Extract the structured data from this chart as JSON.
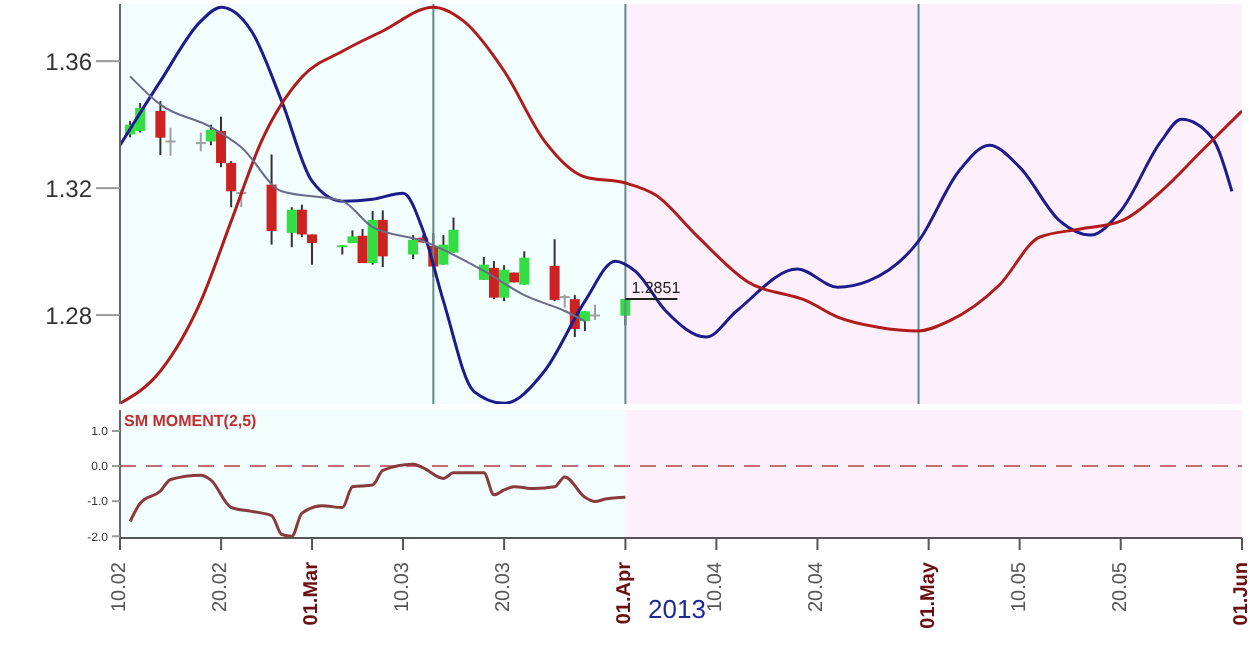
{
  "chart_data": [
    {
      "type": "candlestick",
      "xlim": [
        "2013-02-10",
        "2013-06-01"
      ],
      "tick_labels": "y",
      "ylim": [
        1.252,
        1.378
      ],
      "yticks": [
        1.28,
        1.32,
        1.36
      ],
      "x": [
        "2013-02-11",
        "2013-02-12",
        "2013-02-14",
        "2013-02-15",
        "2013-02-18",
        "2013-02-19",
        "2013-02-20",
        "2013-02-21",
        "2013-02-22",
        "2013-02-25",
        "2013-02-27",
        "2013-02-28",
        "2013-03-01",
        "2013-03-04",
        "2013-03-05",
        "2013-03-06",
        "2013-03-07",
        "2013-03-08",
        "2013-03-11",
        "2013-03-12",
        "2013-03-13",
        "2013-03-14",
        "2013-03-15",
        "2013-03-18",
        "2013-03-19",
        "2013-03-20",
        "2013-03-21",
        "2013-03-22",
        "2013-03-25",
        "2013-03-26",
        "2013-03-27",
        "2013-03-28",
        "2013-03-29",
        "2013-04-01"
      ],
      "ohlc": [
        [
          1.3369,
          1.3411,
          1.336,
          1.34
        ],
        [
          1.338,
          1.3468,
          1.3375,
          1.3453
        ],
        [
          1.3443,
          1.3474,
          1.3304,
          1.3359
        ],
        [
          1.335,
          1.339,
          1.3302,
          1.3345
        ],
        [
          1.3345,
          1.3375,
          1.3316,
          1.3342
        ],
        [
          1.3347,
          1.34,
          1.3335,
          1.3384
        ],
        [
          1.338,
          1.3425,
          1.3266,
          1.3279
        ],
        [
          1.3279,
          1.3285,
          1.314,
          1.319
        ],
        [
          1.3188,
          1.3195,
          1.314,
          1.3185
        ],
        [
          1.3211,
          1.3306,
          1.3022,
          1.3065
        ],
        [
          1.3059,
          1.314,
          1.3014,
          1.3132
        ],
        [
          1.3132,
          1.3148,
          1.3046,
          1.3054
        ],
        [
          1.3054,
          1.3054,
          1.2959,
          1.3027
        ],
        [
          1.3017,
          1.302,
          1.2991,
          1.302
        ],
        [
          1.3027,
          1.3067,
          1.3027,
          1.3048
        ],
        [
          1.305,
          1.3071,
          1.2964,
          1.2964
        ],
        [
          1.2964,
          1.3128,
          1.2959,
          1.31
        ],
        [
          1.31,
          1.313,
          1.2951,
          1.2985
        ],
        [
          1.2991,
          1.3052,
          1.2977,
          1.3037
        ],
        [
          1.3044,
          1.3054,
          1.3029,
          1.3029
        ],
        [
          1.3018,
          1.3058,
          1.292,
          1.2953
        ],
        [
          1.2959,
          1.3052,
          1.2959,
          1.3022
        ],
        [
          1.2997,
          1.3107,
          1.2997,
          1.3069
        ],
        [
          1.2911,
          1.2983,
          1.2911,
          1.2959
        ],
        [
          1.2949,
          1.297,
          1.285,
          1.2855
        ],
        [
          1.2855,
          1.2957,
          1.2844,
          1.2943
        ],
        [
          1.2934,
          1.2934,
          1.2903,
          1.2903
        ],
        [
          1.2896,
          1.3001,
          1.2896,
          1.2981
        ],
        [
          1.2955,
          1.3039,
          1.2844,
          1.2848
        ],
        [
          1.286,
          1.2865,
          1.2823,
          1.2858
        ],
        [
          1.285,
          1.2863,
          1.2731,
          1.2756
        ],
        [
          1.2781,
          1.2812,
          1.275,
          1.2812
        ],
        [
          1.28,
          1.2833,
          1.2785,
          1.2802
        ],
        [
          1.2798,
          1.2851,
          1.2768,
          1.2851
        ]
      ],
      "colors": [
        "#33dd44",
        "#33dd44",
        "#cc2222",
        "#a0a0a0",
        "#a0a0a0",
        "#33dd44",
        "#cc2222",
        "#cc2222",
        "#a0a0a0",
        "#cc2222",
        "#33dd44",
        "#cc2222",
        "#cc2222",
        "#33dd44",
        "#33dd44",
        "#cc2222",
        "#33dd44",
        "#cc2222",
        "#33dd44",
        "#cc2222",
        "#cc2222",
        "#33dd44",
        "#33dd44",
        "#33dd44",
        "#cc2222",
        "#33dd44",
        "#cc2222",
        "#33dd44",
        "#cc2222",
        "#a0a0a0",
        "#cc2222",
        "#33dd44",
        "#a0a0a0",
        "#33dd44"
      ],
      "series": [
        {
          "type": "line",
          "color": "#1c1c8c",
          "x": [
            "2013-02-10",
            "2013-02-14",
            "2013-02-18",
            "2013-02-20",
            "2013-02-23",
            "2013-02-26",
            "2013-03-01",
            "2013-03-04",
            "2013-03-07",
            "2013-03-10",
            "2013-03-12",
            "2013-03-14",
            "2013-03-17",
            "2013-03-20",
            "2013-03-24",
            "2013-03-28",
            "2013-03-31",
            "2013-04-02",
            "2013-04-05",
            "2013-04-09",
            "2013-04-12",
            "2013-04-18",
            "2013-04-22",
            "2013-04-25",
            "2013-04-30",
            "2013-05-04",
            "2013-05-07",
            "2013-05-10",
            "2013-05-14",
            "2013-05-17",
            "2013-05-20",
            "2013-05-24",
            "2013-05-26",
            "2013-05-29",
            "2013-05-31"
          ],
          "values": [
            1.3335,
            1.3537,
            1.3726,
            1.377,
            1.3695,
            1.3474,
            1.3222,
            1.3159,
            1.3165,
            1.3184,
            1.3065,
            1.2844,
            1.256,
            1.2522,
            1.2624,
            1.2844,
            1.297,
            1.2938,
            1.2813,
            1.2731,
            1.2813,
            1.2945,
            1.2888,
            1.2907,
            1.3033,
            1.3254,
            1.3335,
            1.3266,
            1.3096,
            1.3052,
            1.3128,
            1.3348,
            1.3417,
            1.336,
            1.319
          ]
        },
        {
          "type": "line",
          "color": "#b01c1c",
          "x": [
            "2013-02-10",
            "2013-02-14",
            "2013-02-18",
            "2013-02-21",
            "2013-02-24",
            "2013-02-28",
            "2013-03-04",
            "2013-03-08",
            "2013-03-13",
            "2013-03-16",
            "2013-03-20",
            "2013-03-24",
            "2013-03-28",
            "2013-04-01",
            "2013-04-04",
            "2013-04-08",
            "2013-04-13",
            "2013-04-19",
            "2013-04-22",
            "2013-04-26",
            "2013-04-30",
            "2013-05-03",
            "2013-05-08",
            "2013-05-12",
            "2013-05-16",
            "2013-05-20",
            "2013-05-24",
            "2013-05-28",
            "2013-06-01"
          ],
          "values": [
            1.2522,
            1.2624,
            1.2844,
            1.3096,
            1.3348,
            1.355,
            1.3631,
            1.3695,
            1.377,
            1.3726,
            1.3569,
            1.3348,
            1.3235,
            1.3216,
            1.3178,
            1.3052,
            1.2907,
            1.2844,
            1.2794,
            1.2762,
            1.275,
            1.2781,
            1.2895,
            1.3046,
            1.3071,
            1.3096,
            1.319,
            1.3317,
            1.3443
          ]
        },
        {
          "type": "line",
          "color": "#6a6a8a",
          "x": [
            "2013-02-11",
            "2013-02-14",
            "2013-02-19",
            "2013-02-22",
            "2013-02-26",
            "2013-03-04",
            "2013-03-07",
            "2013-03-12",
            "2013-03-18",
            "2013-03-22",
            "2013-03-26",
            "2013-03-28"
          ],
          "values": [
            1.3552,
            1.3463,
            1.3392,
            1.3329,
            1.319,
            1.3159,
            1.3077,
            1.3033,
            1.2939,
            1.2863,
            1.2813,
            1.2781
          ]
        }
      ],
      "annotations": [
        {
          "text": "1.2851",
          "x": "2013-04-01",
          "y": 1.2851
        }
      ],
      "bands": [
        {
          "axis": "x",
          "from": "2013-02-10",
          "to": "2013-04-01",
          "color": "#f2fdfd"
        },
        {
          "axis": "x",
          "from": "2013-04-01",
          "to": "2013-06-01",
          "color": "#fdf0fc"
        }
      ],
      "ref_lines": [
        {
          "axis": "x",
          "value": "2013-03-13",
          "color": "#5f8a8a"
        },
        {
          "axis": "x",
          "value": "2013-04-01",
          "color": "#5f8a8a"
        },
        {
          "axis": "x",
          "value": "2013-04-30",
          "color": "#5f8a8a"
        }
      ]
    },
    {
      "type": "line",
      "title": "SM MOMENT(2,5)",
      "xlabel": "2013",
      "xlim": [
        "2013-02-10",
        "2013-06-01"
      ],
      "xticks": [
        {
          "value": "2013-02-10",
          "label": "10.02"
        },
        {
          "value": "2013-02-20",
          "label": "20.02"
        },
        {
          "value": "2013-03-01",
          "label": "01.Mar"
        },
        {
          "value": "2013-03-10",
          "label": "10.03"
        },
        {
          "value": "2013-03-20",
          "label": "20.03"
        },
        {
          "value": "2013-04-01",
          "label": "01.Apr"
        },
        {
          "value": "2013-04-10",
          "label": "10.04"
        },
        {
          "value": "2013-04-20",
          "label": "20.04"
        },
        {
          "value": "2013-05-01",
          "label": "01.May"
        },
        {
          "value": "2013-05-10",
          "label": "10.05"
        },
        {
          "value": "2013-05-20",
          "label": "20.05"
        },
        {
          "value": "2013-06-01",
          "label": "01.Jun"
        }
      ],
      "ylim": [
        -2.05,
        1.6
      ],
      "yticks": [
        {
          "value": -2,
          "label": "-2.0"
        },
        {
          "value": -1,
          "label": "-1.0"
        },
        {
          "value": 0,
          "label": "0.0"
        },
        {
          "value": 1,
          "label": "1.0"
        }
      ],
      "x": [
        "2013-02-11",
        "2013-02-12",
        "2013-02-14",
        "2013-02-15",
        "2013-02-18",
        "2013-02-19",
        "2013-02-21",
        "2013-02-23",
        "2013-02-25",
        "2013-02-26",
        "2013-02-27",
        "2013-02-28",
        "2013-03-02",
        "2013-03-04",
        "2013-03-05",
        "2013-03-07",
        "2013-03-08",
        "2013-03-11",
        "2013-03-12",
        "2013-03-14",
        "2013-03-15",
        "2013-03-18",
        "2013-03-19",
        "2013-03-20",
        "2013-03-21",
        "2013-03-23",
        "2013-03-25",
        "2013-03-26",
        "2013-03-28",
        "2013-03-29",
        "2013-03-30",
        "2013-04-01"
      ],
      "series": [
        {
          "color": "#8a3a3a",
          "values": [
            -1.58,
            -1.06,
            -0.71,
            -0.38,
            -0.26,
            -0.4,
            -1.18,
            -1.29,
            -1.41,
            -1.95,
            -2.0,
            -1.34,
            -1.13,
            -1.18,
            -0.59,
            -0.54,
            -0.12,
            0.05,
            -0.05,
            -0.35,
            -0.19,
            -0.19,
            -0.82,
            -0.68,
            -0.59,
            -0.64,
            -0.59,
            -0.31,
            -0.89,
            -1.01,
            -0.94,
            -0.89
          ]
        }
      ],
      "ref_lines": [
        {
          "axis": "y",
          "value": 0,
          "color": "#c07070",
          "line_style": "dashed"
        }
      ],
      "bands": [
        {
          "axis": "x",
          "from": "2013-02-10",
          "to": "2013-04-01",
          "color": "#f2fdfd"
        },
        {
          "axis": "x",
          "from": "2013-04-01",
          "to": "2013-06-01",
          "color": "#fdf0fc"
        }
      ]
    }
  ]
}
